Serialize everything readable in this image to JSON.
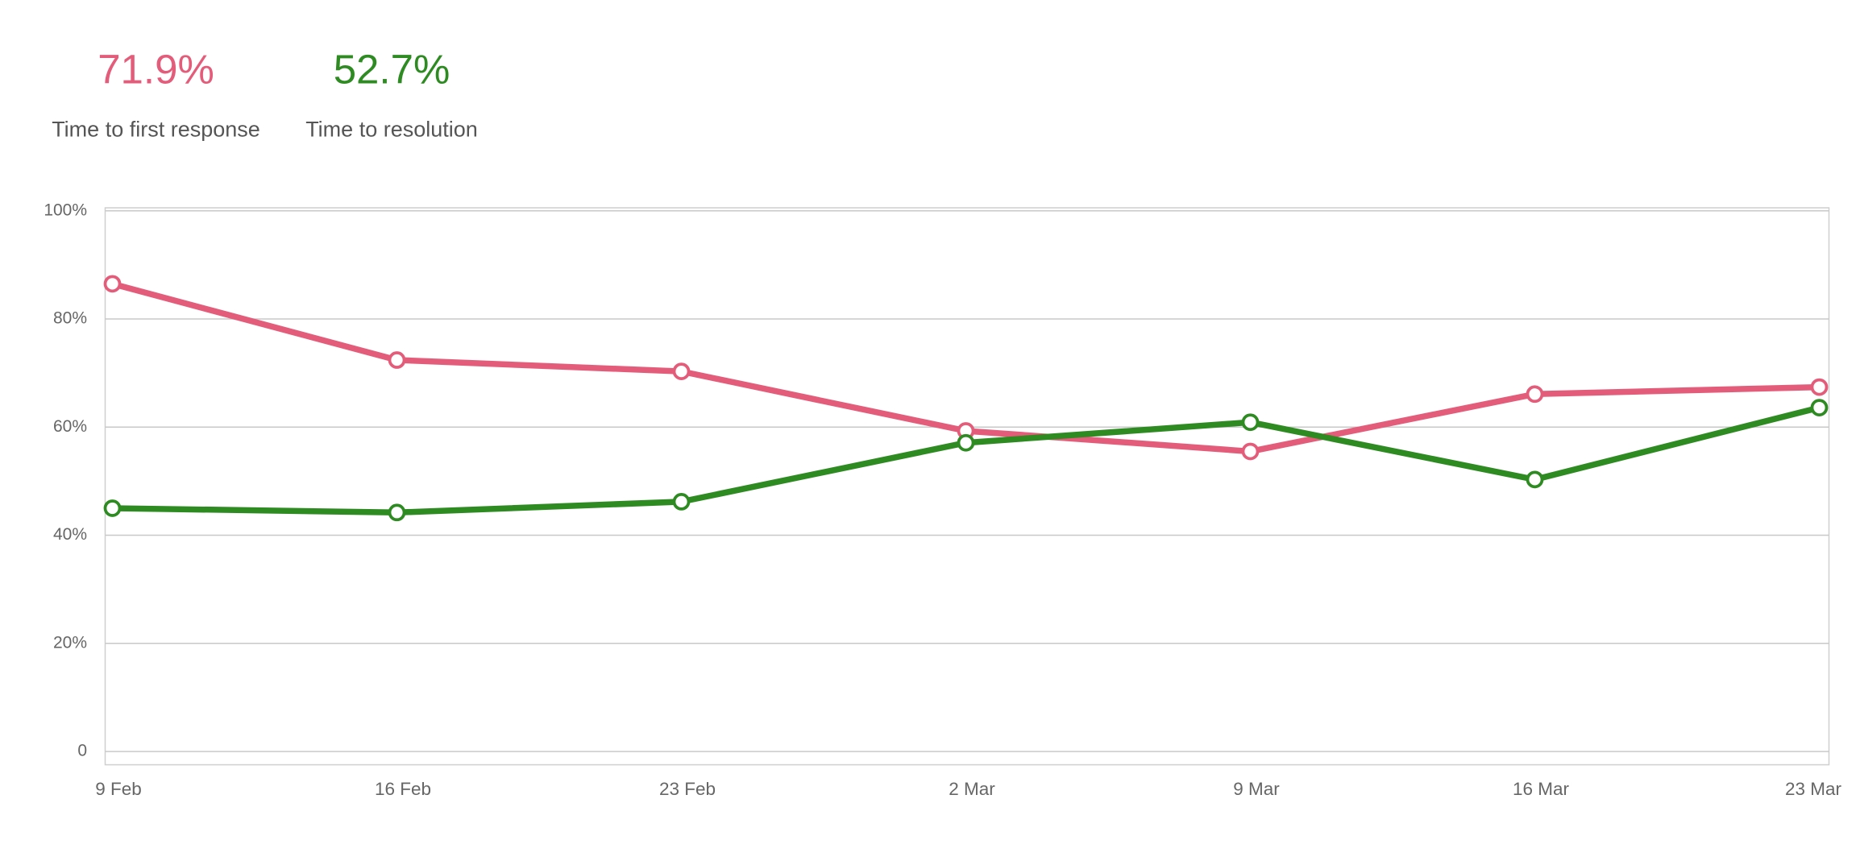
{
  "kpis": [
    "71.9%",
    "52.7%"
  ],
  "chart_data": {
    "type": "line",
    "categories": [
      "9 Feb",
      "16 Feb",
      "23 Feb",
      "2 Mar",
      "9 Mar",
      "16 Mar",
      "23 Mar"
    ],
    "series": [
      {
        "name": "Time to first response",
        "color": "#e35d7a",
        "values": [
          86.5,
          72.4,
          70.3,
          59.3,
          55.5,
          66.1,
          67.4
        ]
      },
      {
        "name": "Time to resolution",
        "color": "#2e8b22",
        "values": [
          45.0,
          44.2,
          46.2,
          57.1,
          60.9,
          50.3,
          63.6
        ]
      }
    ],
    "ylim": [
      0,
      100
    ],
    "yticks": [
      0,
      {
        "value": 20,
        "label": "20%"
      },
      {
        "value": 40,
        "label": "40%"
      },
      {
        "value": 60,
        "label": "60%"
      },
      {
        "value": 80,
        "label": "80%"
      },
      {
        "value": 100,
        "label": "100%"
      }
    ],
    "grid": true
  }
}
